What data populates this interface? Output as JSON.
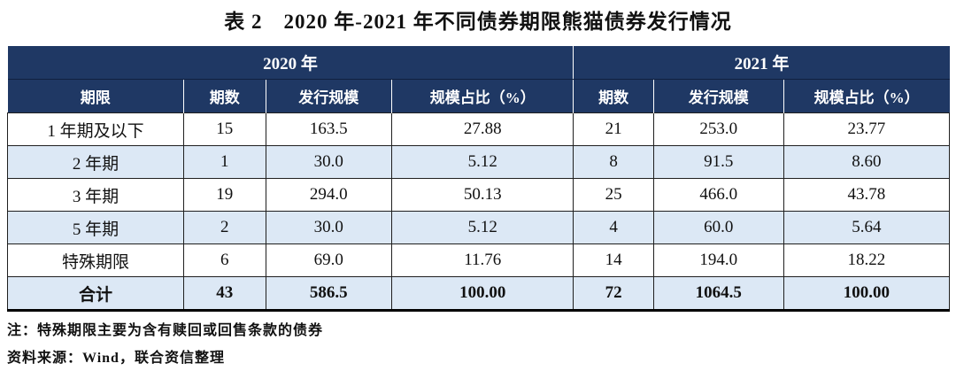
{
  "page": {
    "title": "表 2　2020 年-2021 年不同债券期限熊猫债券发行情况"
  },
  "table": {
    "year_headers": [
      {
        "label": "2020 年"
      },
      {
        "label": "2021 年"
      }
    ],
    "column_headers": [
      "期限",
      "期数",
      "发行规模",
      "规模占比（%）",
      "期数",
      "发行规模",
      "规模占比（%）"
    ],
    "rows": [
      {
        "cells": [
          "1 年期及以下",
          "15",
          "163.5",
          "27.88",
          "21",
          "253.0",
          "23.77"
        ]
      },
      {
        "cells": [
          "2 年期",
          "1",
          "30.0",
          "5.12",
          "8",
          "91.5",
          "8.60"
        ]
      },
      {
        "cells": [
          "3 年期",
          "19",
          "294.0",
          "50.13",
          "25",
          "466.0",
          "43.78"
        ]
      },
      {
        "cells": [
          "5 年期",
          "2",
          "30.0",
          "5.12",
          "4",
          "60.0",
          "5.64"
        ]
      },
      {
        "cells": [
          "特殊期限",
          "6",
          "69.0",
          "11.76",
          "14",
          "194.0",
          "18.22"
        ]
      },
      {
        "cells": [
          "合计",
          "43",
          "586.5",
          "100.00",
          "72",
          "1064.5",
          "100.00"
        ]
      }
    ]
  },
  "notes": {
    "note": "注：特殊期限主要为含有赎回或回售条款的债券",
    "source": "资料来源：Wind，联合资信整理"
  },
  "colors": {
    "header_bg": "#1F3864",
    "header_text": "#FFFFFF",
    "alt_row_bg": "#DCE8F5",
    "border": "#1F1F1F"
  }
}
